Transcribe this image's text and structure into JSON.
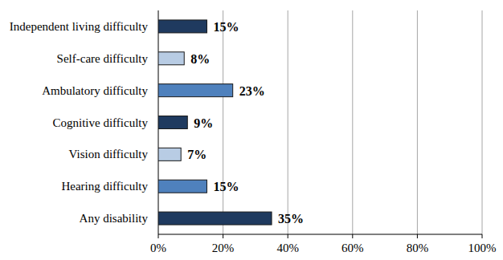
{
  "chart_data": {
    "type": "bar",
    "orientation": "horizontal",
    "categories": [
      "Independent living difficulty",
      "Self-care difficulty",
      "Ambulatory difficulty",
      "Cognitive difficulty",
      "Vision difficulty",
      "Hearing difficulty",
      "Any disability"
    ],
    "values": [
      15,
      8,
      23,
      9,
      7,
      15,
      35
    ],
    "value_labels": [
      "15%",
      "8%",
      "23%",
      "9%",
      "7%",
      "15%",
      "35%"
    ],
    "colors": [
      "#1f3a5f",
      "#b8cce4",
      "#4f81bd",
      "#1f3a5f",
      "#b8cce4",
      "#4f81bd",
      "#1f3a5f"
    ],
    "xlim": [
      0,
      100
    ],
    "xticks": [
      {
        "value": 0,
        "label": "0%"
      },
      {
        "value": 20,
        "label": "20%"
      },
      {
        "value": 40,
        "label": "40%"
      },
      {
        "value": 60,
        "label": "60%"
      },
      {
        "value": 80,
        "label": "80%"
      },
      {
        "value": 100,
        "label": "100%"
      }
    ],
    "grid": true,
    "data_labels": true
  }
}
